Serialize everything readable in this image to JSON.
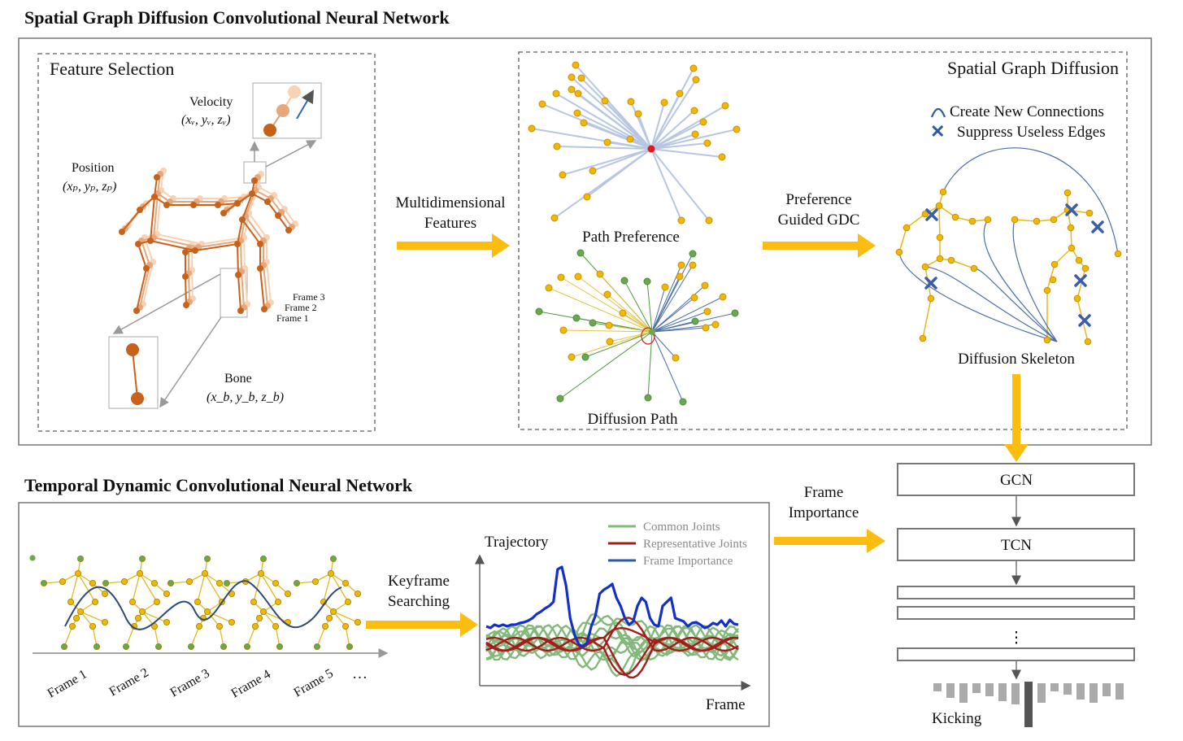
{
  "titles": {
    "spatial": "Spatial Graph Diffusion Convolutional Neural Network",
    "temporal": "Temporal Dynamic Convolutional Neural Network"
  },
  "feature_selection": {
    "title": "Feature Selection",
    "velocity": "Velocity",
    "velocity_coords": "(xᵥ, yᵥ, zᵥ)",
    "position": "Position",
    "position_coords": "(xₚ, yₚ, zₚ)",
    "bone": "Bone",
    "bone_coords": "(x_b, y_b, z_b)",
    "frames": [
      "Frame 3",
      "Frame 2",
      "Frame 1"
    ]
  },
  "arrows": {
    "multidimensional_line1": "Multidimensional",
    "multidimensional_line2": "Features",
    "preference_line1": "Preference",
    "preference_line2": "Guided GDC",
    "keyframe_line1": "Keyframe",
    "keyframe_line2": "Searching",
    "frame_importance_line1": "Frame",
    "frame_importance_line2": "Importance"
  },
  "spatial_diffusion": {
    "title": "Spatial Graph Diffusion",
    "path_preference": "Path Preference",
    "diffusion_path": "Diffusion Path",
    "diffusion_skeleton": "Diffusion Skeleton",
    "legend_create": "Create New Connections",
    "legend_suppress": "Suppress Useless Edges"
  },
  "temporal": {
    "frames": [
      "Frame 1",
      "Frame 2",
      "Frame 3",
      "Frame 4",
      "Frame 5"
    ],
    "ellipsis": "…",
    "trajectory": "Trajectory",
    "frame_axis": "Frame",
    "legend": [
      "Common Joints",
      "Representative Joints",
      "Frame Importance"
    ]
  },
  "network": {
    "gcn": "GCN",
    "tcn": "TCN",
    "dots": "⋮",
    "output": "Kicking"
  },
  "colors": {
    "joint_yellow": "#f2b705",
    "joint_green": "#6aa84f",
    "bone_orange": "#c8621b",
    "arrow_yellow": "#fbbd0f",
    "edge_blue": "#4a6fa5",
    "common_green": "#82b97a",
    "representative_red": "#a61c1c",
    "importance_blue": "#1330c8"
  }
}
